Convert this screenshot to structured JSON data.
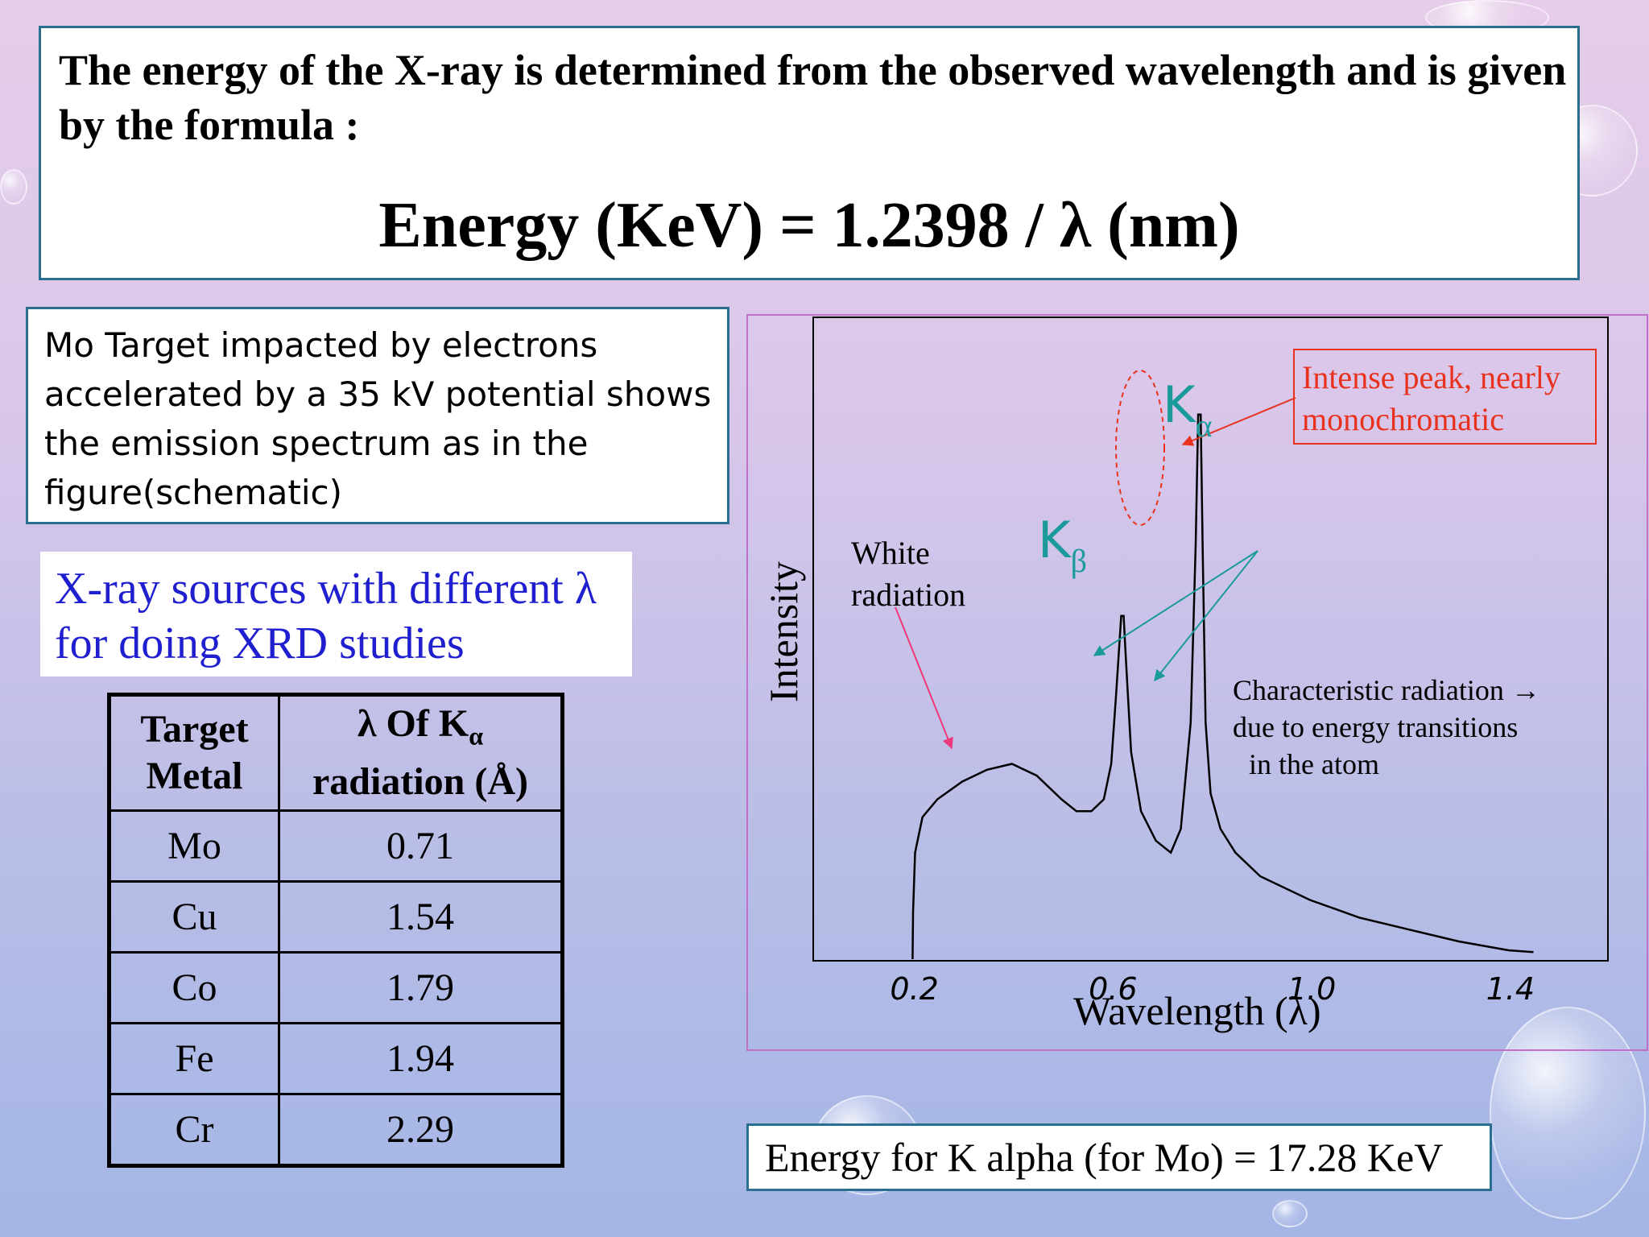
{
  "formula_box": {
    "intro": "The energy of the X-ray is determined from the observed wavelength and is given by the formula :",
    "formula": "Energy (KeV) = 1.2398 / λ (nm)"
  },
  "mo_box": {
    "text": "Mo Target impacted by electrons accelerated by a 35 kV potential shows the emission spectrum as in the figure(schematic)"
  },
  "sources_box": {
    "line1": "X-ray sources with different λ",
    "line2": "for doing XRD studies"
  },
  "table": {
    "header_col1_line1": "Target",
    "header_col1_line2": "Metal",
    "header_col2_line1": "λ Of K",
    "header_col2_sub": "α",
    "header_col2_line2": "radiation (Å)",
    "rows": [
      {
        "metal": "Mo",
        "lambda": "0.71"
      },
      {
        "metal": "Cu",
        "lambda": "1.54"
      },
      {
        "metal": "Co",
        "lambda": "1.79"
      },
      {
        "metal": "Fe",
        "lambda": "1.94"
      },
      {
        "metal": "Cr",
        "lambda": "2.29"
      }
    ]
  },
  "energy_box": {
    "text": "Energy for K alpha (for Mo) = 17.28 KeV"
  },
  "chart_data": {
    "type": "line",
    "xlabel": "Wavelength (λ)",
    "ylabel": "Intensity",
    "x_ticks": [
      "0.2",
      "0.6",
      "1.0",
      "1.4"
    ],
    "xlim": [
      0.0,
      1.6
    ],
    "ylim": [
      0,
      1.0
    ],
    "series": [
      {
        "x": [
          0.2,
          0.201,
          0.205,
          0.22,
          0.25,
          0.3,
          0.35,
          0.4,
          0.45,
          0.5,
          0.53,
          0.56,
          0.585,
          0.6,
          0.61,
          0.62,
          0.625,
          0.63,
          0.64,
          0.66,
          0.69,
          0.72,
          0.74,
          0.76,
          0.77,
          0.775,
          0.78,
          0.784,
          0.79,
          0.8,
          0.82,
          0.85,
          0.9,
          1.0,
          1.1,
          1.2,
          1.3,
          1.4,
          1.45
        ],
        "y": [
          0.0,
          0.08,
          0.18,
          0.24,
          0.27,
          0.3,
          0.32,
          0.33,
          0.31,
          0.27,
          0.25,
          0.25,
          0.27,
          0.33,
          0.45,
          0.58,
          0.58,
          0.5,
          0.35,
          0.25,
          0.2,
          0.18,
          0.22,
          0.4,
          0.7,
          0.92,
          0.92,
          0.7,
          0.4,
          0.28,
          0.22,
          0.18,
          0.14,
          0.1,
          0.07,
          0.05,
          0.03,
          0.015,
          0.012
        ]
      }
    ],
    "annotations": {
      "k_alpha": "K",
      "k_alpha_sub": "α",
      "k_beta": "K",
      "k_beta_sub": "β",
      "white_line1": "White",
      "white_line2": "radiation",
      "char_line1": "Characteristic radiation →",
      "char_line2": "due to energy transitions",
      "char_line3": "in the atom",
      "peak_line1": "Intense peak, nearly",
      "peak_line2": "monochromatic"
    },
    "colors": {
      "curve": "#000000",
      "k_labels": "#1a9a9a",
      "teal_arrows": "#1a9a9a",
      "red_arrow": "#e8321e",
      "pink_arrow": "#ee3a7a",
      "peak_text": "#e8321e"
    },
    "grid": false
  }
}
